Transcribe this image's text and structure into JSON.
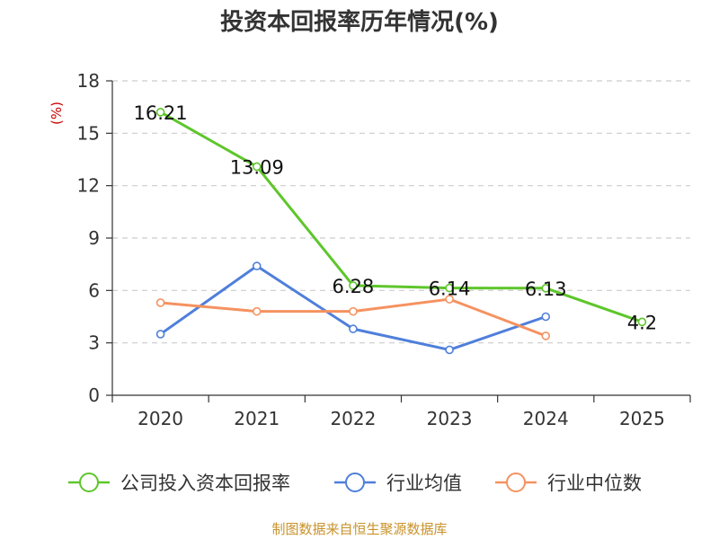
{
  "chart_data": {
    "type": "line",
    "title": "投资本回报率历年情况(%)",
    "ylabel": "(%)",
    "xlabel": "",
    "ylim": [
      0,
      18
    ],
    "yticks": [
      0,
      3,
      6,
      9,
      12,
      15,
      18
    ],
    "grid": true,
    "legend_position": "bottom",
    "categories": [
      "2020",
      "2021",
      "2022",
      "2023",
      "2024",
      "2025"
    ],
    "series": [
      {
        "name": "公司投入资本回报率",
        "values": [
          16.21,
          13.09,
          6.28,
          6.14,
          6.13,
          4.2
        ],
        "labels": [
          "16.21",
          "13.09",
          "6.28",
          "6.14",
          "6.13",
          "4.2"
        ],
        "color": "#5ec62b"
      },
      {
        "name": "行业均值",
        "values": [
          3.5,
          7.4,
          3.8,
          2.6,
          4.5,
          null
        ],
        "color": "#4f7fdb"
      },
      {
        "name": "行业中位数",
        "values": [
          5.3,
          4.8,
          4.8,
          5.5,
          3.4,
          null
        ],
        "color": "#f59260"
      }
    ]
  },
  "source": "制图数据来自恒生聚源数据库",
  "colors": {
    "axis": "#333333",
    "grid": "#cccccc",
    "unit": "#cc0000",
    "source": "#c8922a"
  }
}
